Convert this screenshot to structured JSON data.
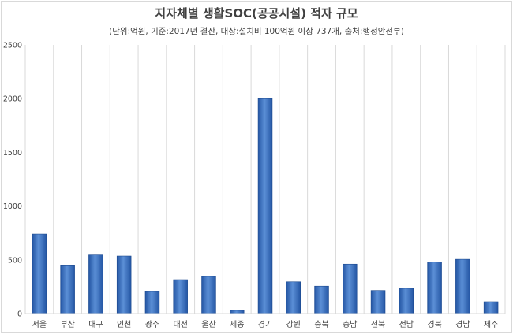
{
  "chart_data": {
    "type": "bar",
    "title": "지자체별 생활SOC(공공시설) 적자 규모",
    "subtitle": "(단위:억원, 기준:2017년 결산, 대상:설치비 100억원 이상 737개, 출처:행정안전부)",
    "categories": [
      "서울",
      "부산",
      "대구",
      "인천",
      "광주",
      "대전",
      "울산",
      "세종",
      "경기",
      "강원",
      "충북",
      "충남",
      "전북",
      "전남",
      "경북",
      "경남",
      "제주"
    ],
    "values": [
      740,
      445,
      545,
      535,
      205,
      315,
      345,
      30,
      2000,
      295,
      255,
      460,
      215,
      235,
      480,
      505,
      110
    ],
    "ylim": [
      0,
      2500
    ],
    "yticks": [
      "0",
      "500",
      "1000",
      "1500",
      "2000",
      "2500"
    ],
    "ytick_values": [
      0,
      500,
      1000,
      1500,
      2000,
      2500
    ],
    "grid": "vertical-category-separators",
    "legend": "none",
    "colors": {
      "bar_light": "#5b8fd6",
      "bar_dark": "#2456a4",
      "bar_edge": "#1d4a8f",
      "grid": "#d9d9d9",
      "text": "#404040"
    }
  }
}
